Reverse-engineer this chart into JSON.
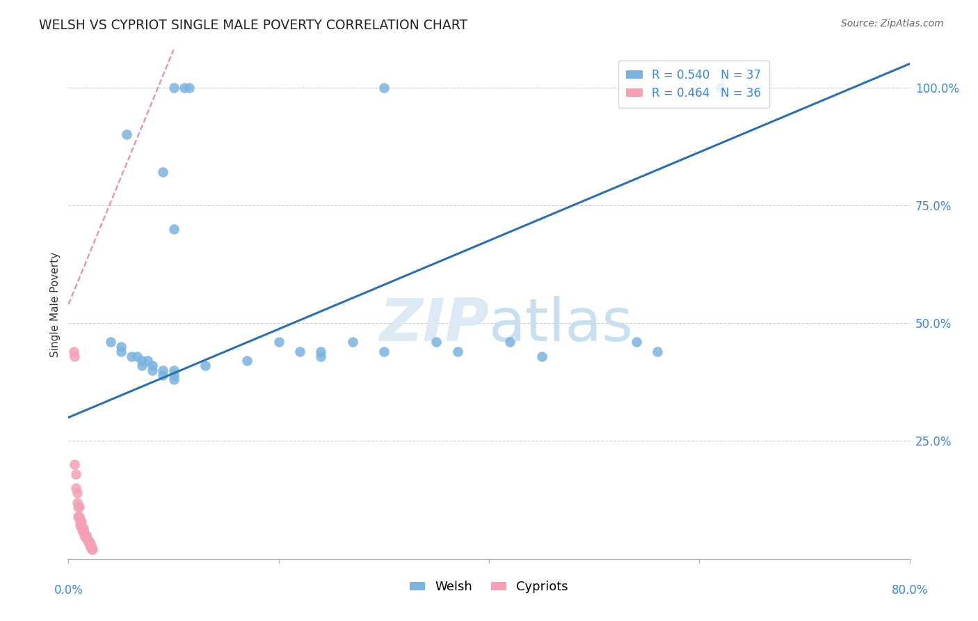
{
  "title": "WELSH VS CYPRIOT SINGLE MALE POVERTY CORRELATION CHART",
  "source": "Source: ZipAtlas.com",
  "ylabel": "Single Male Poverty",
  "welsh_R": 0.54,
  "welsh_N": 37,
  "cypriot_R": 0.464,
  "cypriot_N": 36,
  "welsh_color": "#7ab3e0",
  "cypriot_color": "#f4a0b5",
  "welsh_line_color": "#2c6fad",
  "cypriot_line_color": "#e8728a",
  "watermark_color": "#dde9f5",
  "welsh_x": [
    0.1,
    0.11,
    0.115,
    0.3,
    0.055,
    0.09,
    0.1,
    0.04,
    0.05,
    0.05,
    0.06,
    0.065,
    0.07,
    0.07,
    0.075,
    0.08,
    0.08,
    0.09,
    0.09,
    0.1,
    0.1,
    0.1,
    0.13,
    0.17,
    0.2,
    0.22,
    0.24,
    0.24,
    0.27,
    0.3,
    0.35,
    0.37,
    0.42,
    0.45,
    0.54,
    0.56,
    0.62
  ],
  "welsh_y": [
    1.0,
    1.0,
    1.0,
    1.0,
    0.9,
    0.82,
    0.7,
    0.46,
    0.45,
    0.44,
    0.43,
    0.43,
    0.42,
    0.41,
    0.42,
    0.41,
    0.4,
    0.4,
    0.39,
    0.39,
    0.38,
    0.4,
    0.41,
    0.42,
    0.46,
    0.44,
    0.43,
    0.44,
    0.46,
    0.44,
    0.46,
    0.44,
    0.46,
    0.43,
    0.46,
    0.44,
    1.0
  ],
  "cypriot_x": [
    0.005,
    0.006,
    0.006,
    0.007,
    0.007,
    0.008,
    0.008,
    0.009,
    0.009,
    0.01,
    0.01,
    0.011,
    0.011,
    0.012,
    0.012,
    0.013,
    0.013,
    0.014,
    0.014,
    0.015,
    0.015,
    0.016,
    0.016,
    0.017,
    0.017,
    0.018,
    0.018,
    0.019,
    0.019,
    0.02,
    0.02,
    0.021,
    0.021,
    0.022,
    0.022,
    0.023
  ],
  "cypriot_y": [
    0.44,
    0.43,
    0.2,
    0.18,
    0.15,
    0.14,
    0.12,
    0.11,
    0.09,
    0.11,
    0.09,
    0.08,
    0.07,
    0.08,
    0.07,
    0.065,
    0.06,
    0.065,
    0.06,
    0.055,
    0.05,
    0.05,
    0.045,
    0.05,
    0.045,
    0.04,
    0.04,
    0.04,
    0.035,
    0.035,
    0.03,
    0.03,
    0.025,
    0.025,
    0.02,
    0.02
  ],
  "welsh_line_x0": 0.0,
  "welsh_line_y0": 0.3,
  "welsh_line_x1": 0.8,
  "welsh_line_y1": 1.05,
  "cypriot_line_x0": 0.0,
  "cypriot_line_y0": 0.54,
  "cypriot_line_x1": 0.1,
  "cypriot_line_y1": 1.08,
  "xmin": 0.0,
  "xmax": 0.8,
  "ymin": 0.0,
  "ymax": 1.08
}
